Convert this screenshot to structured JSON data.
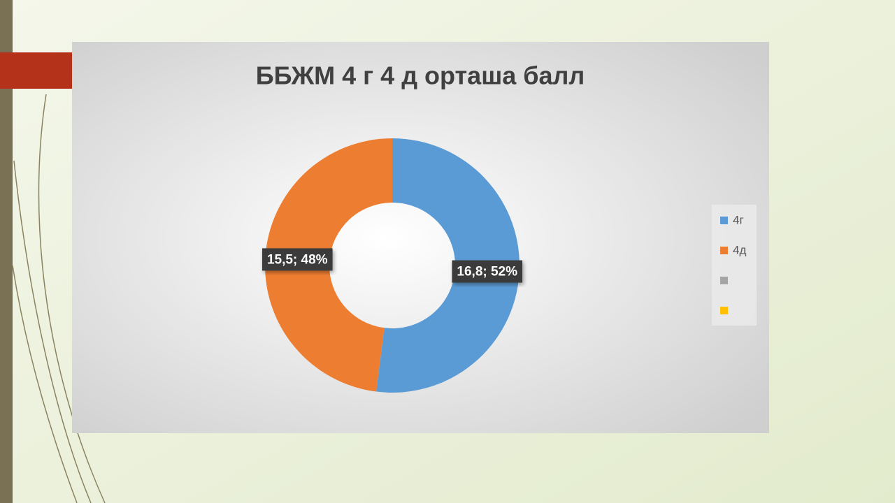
{
  "chart_data": {
    "type": "donut",
    "title": "ББЖМ 4 г 4 д орташа балл",
    "categories": [
      "4г",
      "4д",
      null,
      null
    ],
    "values": [
      16.8,
      15.5,
      null,
      null
    ],
    "value_labels": [
      "16,8; 52%",
      "15,5; 48%",
      null,
      null
    ],
    "colors": [
      "#5b9bd5",
      "#ed7d31",
      "#a5a5a5",
      "#ffc000"
    ],
    "legend": "right"
  }
}
